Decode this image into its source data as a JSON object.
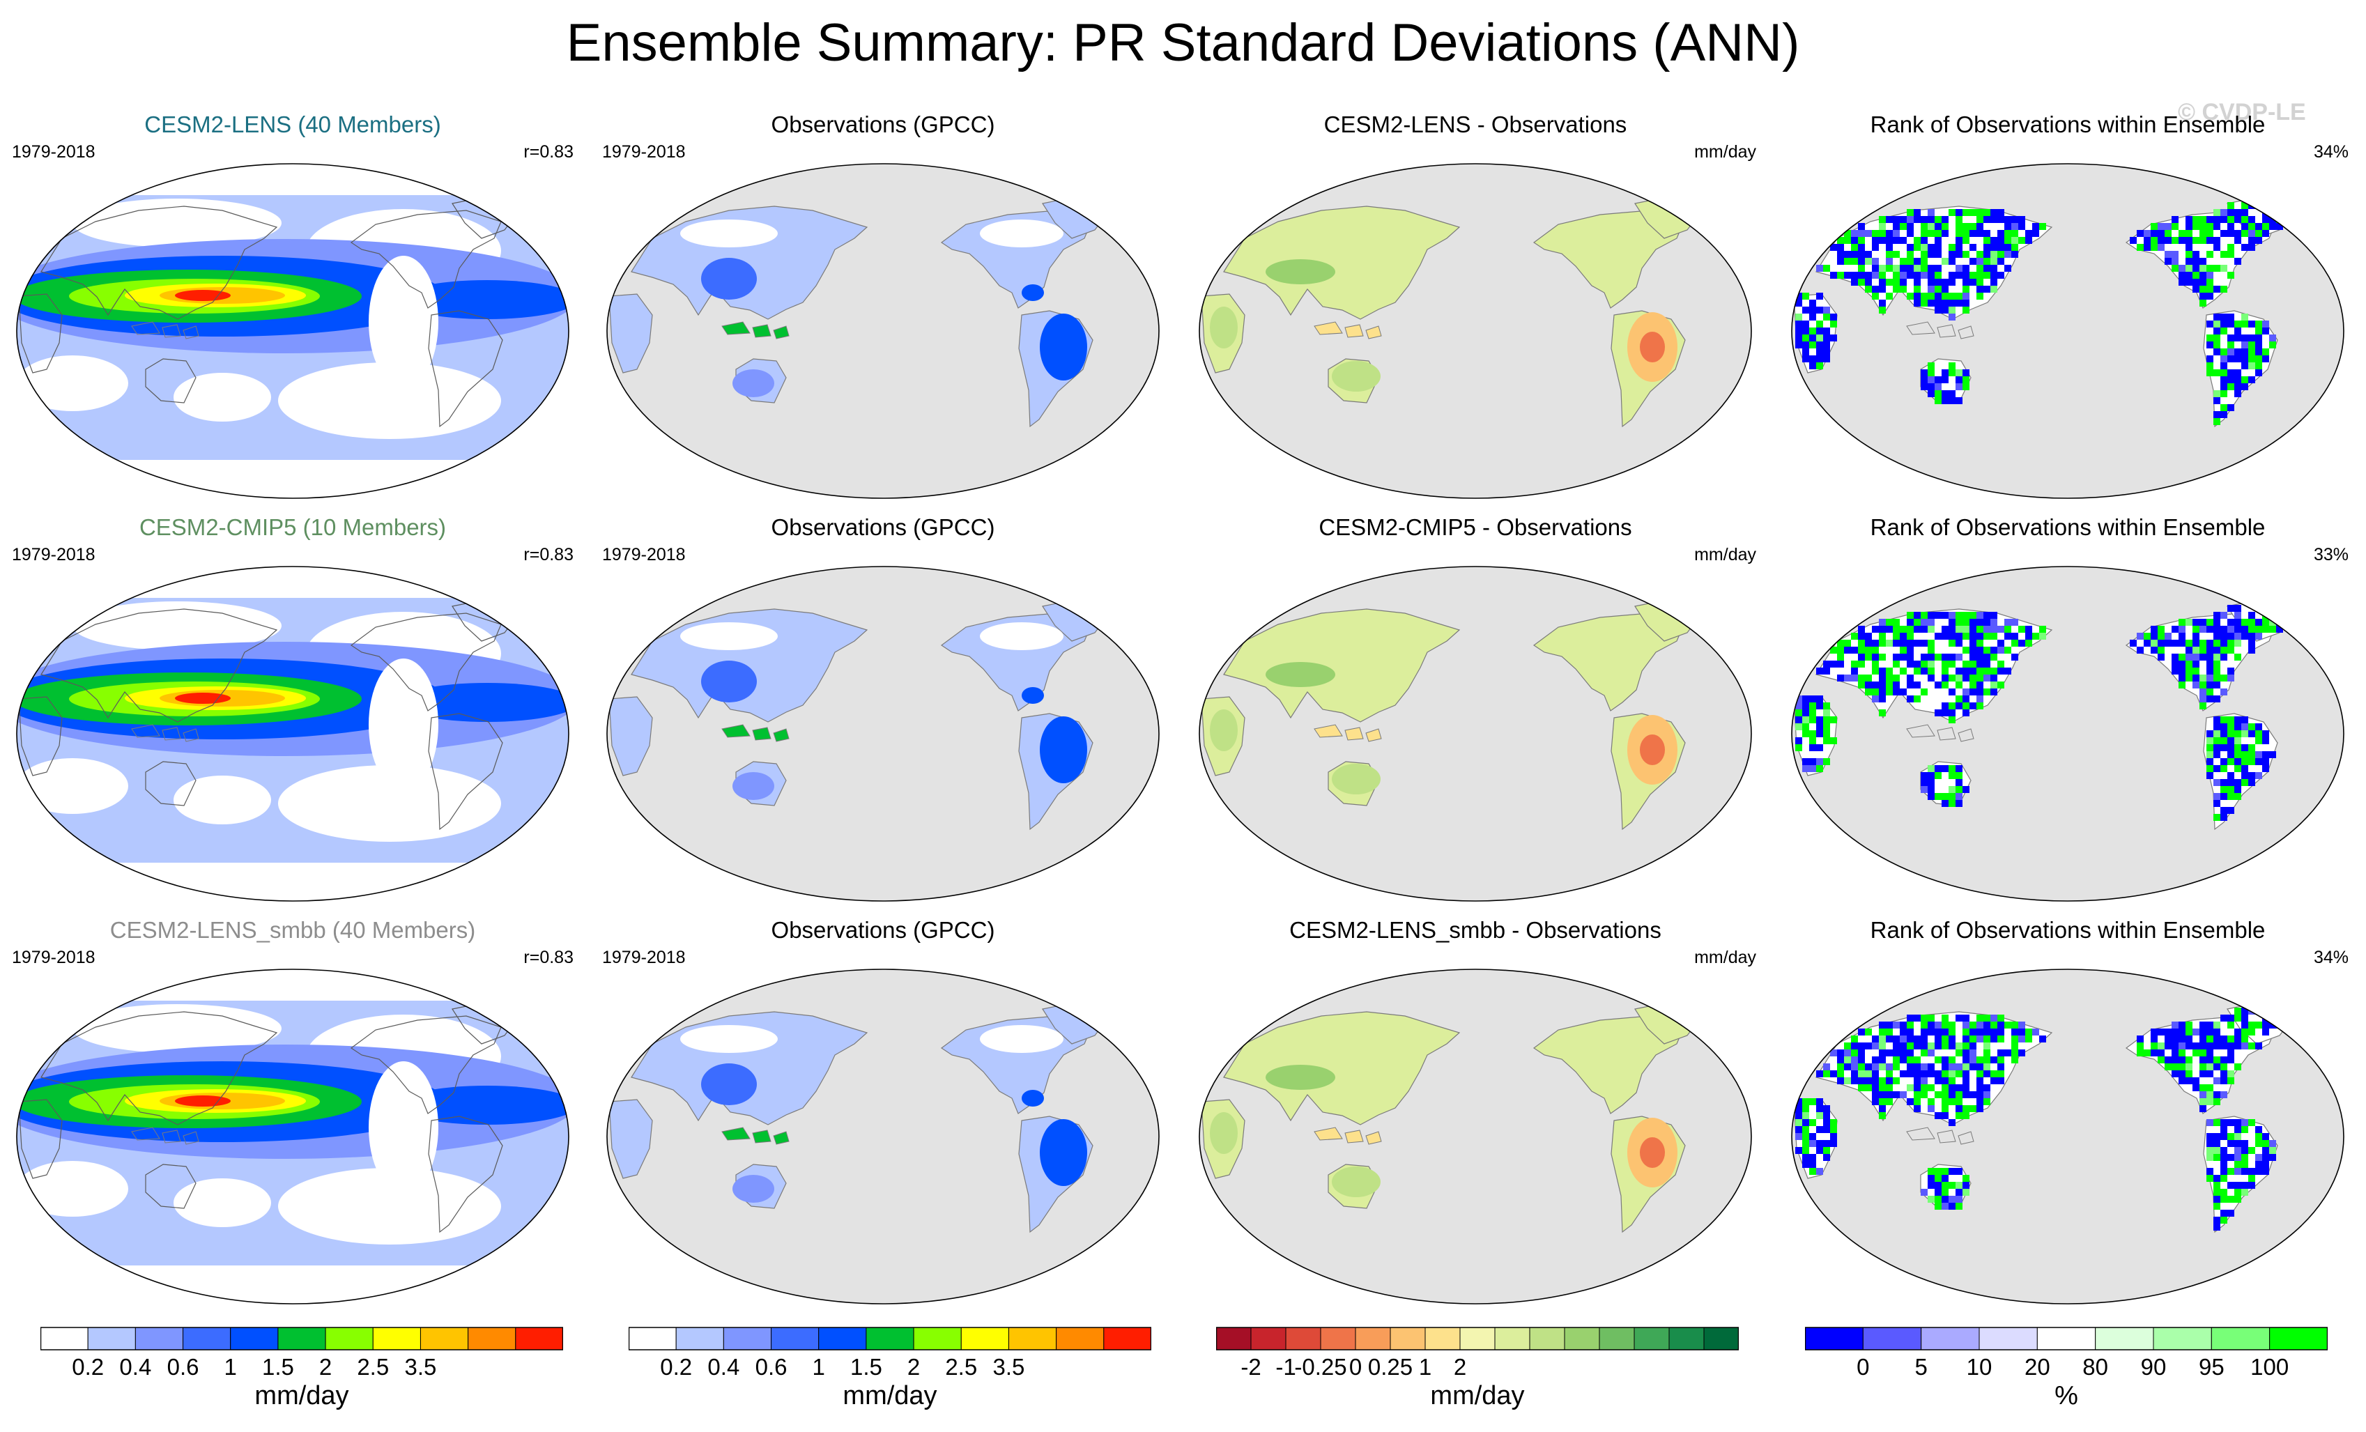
{
  "figure_title": "Ensemble Summary: PR Standard Deviations (ANN)",
  "watermark": "© CVDP-LE",
  "chart_data": {
    "type": "heatmap",
    "description_kind": "global map panels",
    "rows": [
      {
        "ensemble": {
          "title": "CESM2-LENS (40 Members)",
          "period": "1979-2018",
          "pattern_correlation": "r=0.83"
        },
        "observations": {
          "title": "Observations (GPCC)",
          "period": "1979-2018"
        },
        "difference": {
          "title": "CESM2-LENS - Observations",
          "units": "mm/day"
        },
        "rank": {
          "title": "Rank of Observations within Ensemble",
          "percent": "34%"
        }
      },
      {
        "ensemble": {
          "title": "CESM2-CMIP5 (10 Members)",
          "period": "1979-2018",
          "pattern_correlation": "r=0.83"
        },
        "observations": {
          "title": "Observations (GPCC)",
          "period": "1979-2018"
        },
        "difference": {
          "title": "CESM2-CMIP5 - Observations",
          "units": "mm/day"
        },
        "rank": {
          "title": "Rank of Observations within Ensemble",
          "percent": "33%"
        }
      },
      {
        "ensemble": {
          "title": "CESM2-LENS_smbb (40 Members)",
          "period": "1979-2018",
          "pattern_correlation": "r=0.83"
        },
        "observations": {
          "title": "Observations (GPCC)",
          "period": "1979-2018"
        },
        "difference": {
          "title": "CESM2-LENS_smbb - Observations",
          "units": "mm/day"
        },
        "rank": {
          "title": "Rank of Observations within Ensemble",
          "percent": "34%"
        }
      }
    ],
    "colorbars": [
      {
        "name": "std-dev",
        "units": "mm/day",
        "colors": [
          "#ffffff",
          "#b4c8ff",
          "#7f96ff",
          "#3c6cff",
          "#0050ff",
          "#00c030",
          "#88ff00",
          "#ffff00",
          "#ffc400",
          "#ff8a00",
          "#ff1e00"
        ],
        "tick_labels": [
          "0.2",
          "0.4",
          "0.6",
          "1",
          "1.5",
          "2",
          "2.5",
          "3.5"
        ]
      },
      {
        "name": "std-dev-obs",
        "units": "mm/day",
        "colors": [
          "#ffffff",
          "#b4c8ff",
          "#7f96ff",
          "#3c6cff",
          "#0050ff",
          "#00c030",
          "#88ff00",
          "#ffff00",
          "#ffc400",
          "#ff8a00",
          "#ff1e00"
        ],
        "tick_labels": [
          "0.2",
          "0.4",
          "0.6",
          "1",
          "1.5",
          "2",
          "2.5",
          "3.5"
        ]
      },
      {
        "name": "difference",
        "units": "mm/day",
        "colors": [
          "#a50f26",
          "#c8242c",
          "#de4a38",
          "#ef7449",
          "#f89d59",
          "#fcc371",
          "#fde18c",
          "#f3f5b0",
          "#dcee9c",
          "#bfe186",
          "#99d16e",
          "#6fbe62",
          "#3fa857",
          "#198d4b",
          "#006a3a"
        ],
        "tick_labels": [
          "-2",
          "-1",
          "-0.25",
          "0",
          "0.25",
          "1",
          "2"
        ]
      },
      {
        "name": "rank",
        "units": "%",
        "colors": [
          "#0000ff",
          "#5a5aff",
          "#aaaaff",
          "#dcdcff",
          "#ffffff",
          "#dcffdc",
          "#aaffaa",
          "#78ff78",
          "#00ff00"
        ],
        "tick_labels": [
          "0",
          "5",
          "10",
          "20",
          "80",
          "90",
          "95",
          "100"
        ]
      }
    ]
  }
}
